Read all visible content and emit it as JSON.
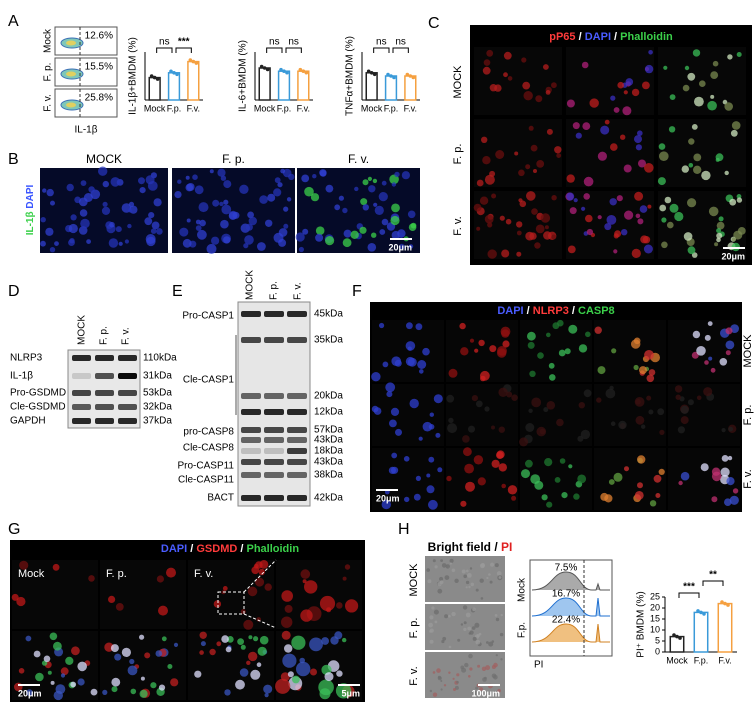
{
  "panel_labels": [
    "A",
    "B",
    "C",
    "D",
    "E",
    "F",
    "G",
    "H"
  ],
  "chart_data": [
    {
      "type": "bar",
      "y_label": "IL-1β+BMDM (%)",
      "categories": [
        "Mock",
        "F.p.",
        "F.v."
      ],
      "values": [
        14,
        17,
        24
      ],
      "colors": [
        "#222222",
        "#3a9ad9",
        "#f5a040"
      ],
      "ylim": [
        0,
        30
      ],
      "significance": [
        "ns",
        "***"
      ]
    },
    {
      "type": "bar",
      "y_label": "IL-6+BMDM (%)",
      "categories": [
        "Mock",
        "F.p.",
        "F.v."
      ],
      "values": [
        20,
        18,
        18
      ],
      "colors": [
        "#222222",
        "#3a9ad9",
        "#f5a040"
      ],
      "ylim": [
        0,
        30
      ],
      "significance": [
        "ns",
        "ns"
      ]
    },
    {
      "type": "bar",
      "y_label": "TNFα+BMDM (%)",
      "categories": [
        "Mock",
        "F.p.",
        "F.v."
      ],
      "values": [
        17,
        15,
        15
      ],
      "colors": [
        "#222222",
        "#3a9ad9",
        "#f5a040"
      ],
      "ylim": [
        0,
        30
      ],
      "significance": [
        "ns",
        "ns"
      ]
    },
    {
      "type": "bar",
      "y_label": "PI⁺ BMDM (%)",
      "categories": [
        "Mock",
        "F.p.",
        "F.v."
      ],
      "values": [
        7,
        18,
        22
      ],
      "colors": [
        "#222222",
        "#3a9ad9",
        "#f5a040"
      ],
      "ylim": [
        0,
        25
      ],
      "yticks": [
        0,
        5,
        10,
        15,
        20,
        25
      ],
      "significance": [
        "***",
        "**"
      ]
    }
  ],
  "A": {
    "rows": [
      "Mock",
      "F. p.",
      "F. v."
    ],
    "percents": [
      "12.6%",
      "15.5%",
      "25.8%"
    ],
    "x_label": "IL-1β"
  },
  "B": {
    "columns": [
      "MOCK",
      "F. p.",
      "F. v."
    ],
    "stain_parts": [
      "IL-1β",
      "/",
      "DAPI"
    ],
    "scale_bar": "20μm"
  },
  "C": {
    "title_parts": [
      "pP65",
      " / ",
      "DAPI",
      " / ",
      "Phalloidin"
    ],
    "rows": [
      "MOCK",
      "F. p.",
      "F. v."
    ],
    "scale_bar": "20μm"
  },
  "D": {
    "lanes": [
      "MOCK",
      "F. p.",
      "F. v."
    ],
    "bands": [
      {
        "name": "NLRP3",
        "kda": "110kDa"
      },
      {
        "name": "IL-1β",
        "kda": "31kDa"
      },
      {
        "name": "Pro-GSDMD",
        "kda": "53kDa"
      },
      {
        "name": "Cle-GSDMD",
        "kda": "32kDa"
      },
      {
        "name": "GAPDH",
        "kda": "37kDa"
      }
    ]
  },
  "E": {
    "lanes": [
      "MOCK",
      "F. p.",
      "F. v."
    ],
    "labels": [
      "Pro-CASP1",
      "Cle-CASP1",
      "pro-CASP8",
      "Cle-CASP8",
      "Pro-CASP11",
      "Cle-CASP11",
      "BACT"
    ],
    "kda": [
      "45kDa",
      "35kDa",
      "20kDa",
      "12kDa",
      "57kDa",
      "43kDa",
      "18kDa",
      "43kDa",
      "38kDa",
      "42kDa"
    ]
  },
  "F": {
    "title_parts": [
      "DAPI",
      " / ",
      "NLRP3",
      " / ",
      "CASP8"
    ],
    "rows": [
      "MOCK",
      "F. p.",
      "F. v."
    ],
    "scale_bar": "20μm"
  },
  "G": {
    "title_parts": [
      "DAPI",
      " / ",
      "GSDMD",
      " / ",
      "Phalloidin"
    ],
    "columns": [
      "Mock",
      "F. p.",
      "F. v."
    ],
    "scale_bars": [
      "20μm",
      "5μm"
    ]
  },
  "H": {
    "title_parts": [
      "Bright field",
      " / ",
      "PI"
    ],
    "rows": [
      "MOCK",
      "F. p.",
      "F. v."
    ],
    "scale_bar": "100μm",
    "histogram": {
      "labels": [
        "F.p.",
        "Mock"
      ],
      "percents": [
        "7.5%",
        "16.7%",
        "22.4%"
      ],
      "x_label": "PI"
    }
  }
}
